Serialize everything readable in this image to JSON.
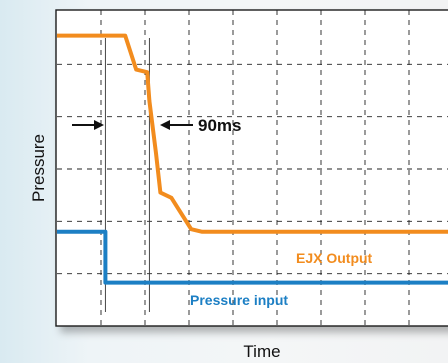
{
  "chart_data": {
    "type": "line",
    "xlabel": "Time",
    "ylabel": "Pressure",
    "annotation": "90ms",
    "grid": true,
    "xlim": [
      0,
      9
    ],
    "ylim": [
      0,
      6
    ],
    "series": [
      {
        "name": "EJX Output",
        "color": "#f28c1e",
        "points": [
          [
            0,
            5.55
          ],
          [
            1.55,
            5.55
          ],
          [
            1.8,
            4.9
          ],
          [
            2.05,
            4.85
          ],
          [
            2.1,
            4.3
          ],
          [
            2.25,
            3.3
          ],
          [
            2.35,
            2.55
          ],
          [
            2.6,
            2.45
          ],
          [
            2.75,
            2.25
          ],
          [
            3.05,
            1.85
          ],
          [
            3.3,
            1.8
          ],
          [
            9,
            1.8
          ]
        ]
      },
      {
        "name": "Pressure input",
        "color": "#1c7fc4",
        "points": [
          [
            0,
            1.8
          ],
          [
            1.1,
            1.8
          ],
          [
            1.1,
            0.83
          ],
          [
            9,
            0.83
          ]
        ]
      }
    ]
  }
}
